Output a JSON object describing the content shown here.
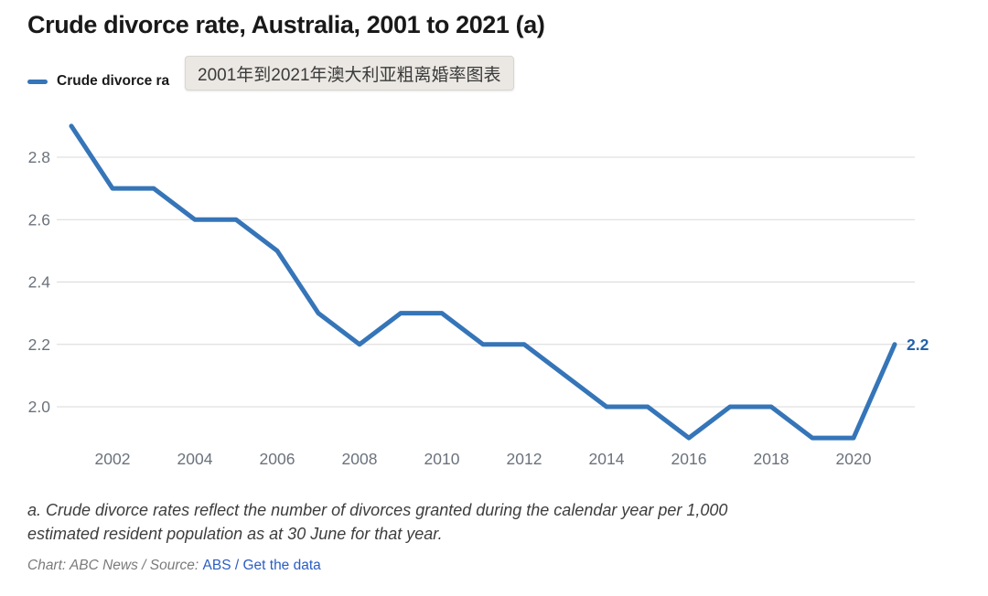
{
  "header": {
    "title": "Crude divorce rate, Australia, 2001 to 2021 (a)"
  },
  "legend": {
    "label": "Crude divorce ra"
  },
  "tooltip": {
    "text": "2001年到2021年澳大利亚粗离婚率图表"
  },
  "chart_data": {
    "type": "line",
    "title": "Crude divorce rate, Australia, 2001 to 2021 (a)",
    "xlabel": "",
    "ylabel": "",
    "x": [
      2001,
      2002,
      2003,
      2004,
      2005,
      2006,
      2007,
      2008,
      2009,
      2010,
      2011,
      2012,
      2013,
      2014,
      2015,
      2016,
      2017,
      2018,
      2019,
      2020,
      2021
    ],
    "series": [
      {
        "name": "Crude divorce rate",
        "values": [
          2.9,
          2.7,
          2.7,
          2.6,
          2.6,
          2.5,
          2.3,
          2.2,
          2.3,
          2.3,
          2.2,
          2.2,
          2.1,
          2.0,
          2.0,
          1.9,
          2.0,
          2.0,
          1.9,
          1.9,
          2.2
        ]
      }
    ],
    "yticks": [
      "2.0",
      "2.2",
      "2.4",
      "2.6",
      "2.8"
    ],
    "xticks": [
      2002,
      2004,
      2006,
      2008,
      2010,
      2012,
      2014,
      2016,
      2018,
      2020
    ],
    "xlim": [
      2001,
      2021
    ],
    "ylim": [
      1.85,
      2.95
    ],
    "grid": "horizontal-only",
    "legend_position": "top-left",
    "end_label": "2.2",
    "colors": {
      "line": "#3575b8",
      "end_label": "#2363ab",
      "axis_text": "#6b727c",
      "gridline": "#d9d9d9"
    }
  },
  "footer": {
    "footnote_lines": [
      "a. Crude divorce rates reflect the number of divorces granted during the calendar year per 1,000",
      "estimated resident population as at 30 June for that year."
    ],
    "credit_prefix": "Chart: ABC News / Source: ",
    "source_link": "ABS",
    "credit_separator": " / ",
    "get_data_link": "Get the data"
  }
}
